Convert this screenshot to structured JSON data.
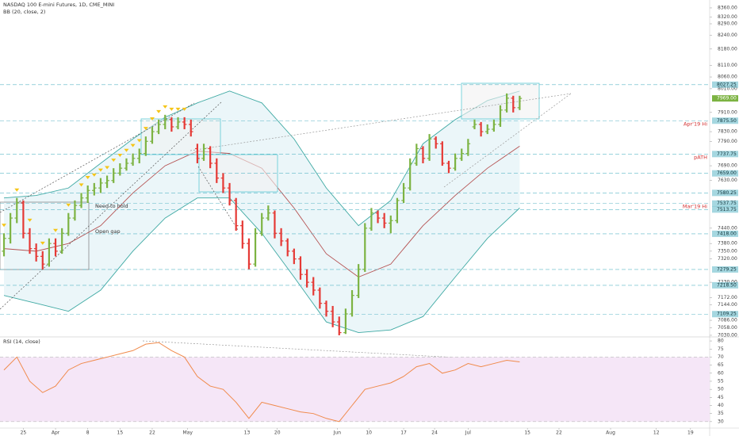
{
  "chart_data": [
    {
      "type": "ohlc",
      "title": "NASDAQ 100 E-mini Futures, 1D, CME_MINI",
      "subtitle": "BB (20, close, 2)",
      "log_scale": true,
      "grid": false,
      "up_color": "#7cb342",
      "down_color": "#e53935",
      "ylim": [
        7024,
        8395
      ],
      "yticks": [
        {
          "value": 8360,
          "label": "8360.00"
        },
        {
          "value": 8320,
          "label": "8320.00"
        },
        {
          "value": 8290,
          "label": "8290.00"
        },
        {
          "value": 8240,
          "label": "8240.00"
        },
        {
          "value": 8180,
          "label": "8180.00"
        },
        {
          "value": 8110,
          "label": "8110.00"
        },
        {
          "value": 8060,
          "label": "8060.00"
        },
        {
          "value": 8010,
          "label": "8010.00"
        },
        {
          "value": 7910,
          "label": "7910.00"
        },
        {
          "value": 7830,
          "label": "7830.00"
        },
        {
          "value": 7790,
          "label": "7790.00"
        },
        {
          "value": 7690,
          "label": "7690.00"
        },
        {
          "value": 7630,
          "label": "7630.00"
        },
        {
          "value": 7440,
          "label": "7440.00"
        },
        {
          "value": 7380,
          "label": "7380.00"
        },
        {
          "value": 7350,
          "label": "7350.00"
        },
        {
          "value": 7320,
          "label": "7320.00"
        },
        {
          "value": 7230,
          "label": "7230.00"
        },
        {
          "value": 7172,
          "label": "7172.00"
        },
        {
          "value": 7144,
          "label": "7144.00"
        },
        {
          "value": 7086,
          "label": "7086.00"
        },
        {
          "value": 7058,
          "label": "7058.00"
        },
        {
          "value": 7030,
          "label": "7030.00"
        }
      ],
      "xticks": [
        {
          "value": 3,
          "label": "25"
        },
        {
          "value": 8,
          "label": "Apr"
        },
        {
          "value": 13,
          "label": "8"
        },
        {
          "value": 18,
          "label": "15"
        },
        {
          "value": 23,
          "label": "22"
        },
        {
          "value": 28.5,
          "label": "May"
        },
        {
          "value": 37.7,
          "label": "13"
        },
        {
          "value": 42.4,
          "label": "20"
        },
        {
          "value": 51.7,
          "label": "Jun"
        },
        {
          "value": 56.6,
          "label": "10"
        },
        {
          "value": 62,
          "label": "17"
        },
        {
          "value": 66.8,
          "label": "24"
        },
        {
          "value": 72,
          "label": "Jul"
        },
        {
          "value": 81.2,
          "label": "15"
        },
        {
          "value": 86.1,
          "label": "22"
        },
        {
          "value": 94.1,
          "label": "Aug"
        },
        {
          "value": 101.2,
          "label": "12"
        },
        {
          "value": 106.5,
          "label": "19"
        }
      ],
      "open": [
        7350,
        7400,
        7480,
        7540,
        7420,
        7360,
        7330,
        7300,
        7380,
        7350,
        7420,
        7480,
        7530,
        7560,
        7590,
        7600,
        7620,
        7630,
        7660,
        7680,
        7700,
        7720,
        7740,
        7790,
        7830,
        7860,
        7880,
        7850,
        7870,
        7860,
        7760,
        7720,
        7760,
        7700,
        7640,
        7600,
        7550,
        7450,
        7380,
        7300,
        7420,
        7480,
        7500,
        7420,
        7390,
        7350,
        7320,
        7260,
        7230,
        7200,
        7150,
        7120,
        7080,
        7040,
        7110,
        7180,
        7280,
        7440,
        7500,
        7480,
        7460,
        7470,
        7550,
        7600,
        7700,
        7760,
        7720,
        7800,
        7780,
        7700,
        7680,
        7720,
        7740,
        7850,
        7860,
        7830,
        7840,
        7860,
        7920,
        7970,
        7930
      ],
      "high": [
        7420,
        7500,
        7560,
        7550,
        7440,
        7380,
        7350,
        7400,
        7400,
        7440,
        7500,
        7550,
        7580,
        7610,
        7620,
        7640,
        7650,
        7680,
        7700,
        7720,
        7740,
        7760,
        7810,
        7850,
        7880,
        7900,
        7890,
        7890,
        7890,
        7880,
        7780,
        7780,
        7770,
        7720,
        7660,
        7620,
        7560,
        7470,
        7400,
        7440,
        7500,
        7530,
        7510,
        7440,
        7400,
        7360,
        7330,
        7280,
        7250,
        7210,
        7160,
        7140,
        7100,
        7130,
        7200,
        7300,
        7460,
        7520,
        7510,
        7500,
        7490,
        7560,
        7620,
        7720,
        7780,
        7770,
        7820,
        7810,
        7790,
        7710,
        7740,
        7760,
        7800,
        7880,
        7870,
        7860,
        7880,
        7940,
        7990,
        7980,
        7980
      ],
      "low": [
        7330,
        7380,
        7460,
        7400,
        7340,
        7310,
        7280,
        7290,
        7330,
        7340,
        7410,
        7470,
        7520,
        7540,
        7570,
        7580,
        7600,
        7620,
        7650,
        7670,
        7690,
        7700,
        7730,
        7780,
        7820,
        7840,
        7830,
        7840,
        7840,
        7810,
        7700,
        7710,
        7680,
        7620,
        7580,
        7530,
        7430,
        7360,
        7280,
        7290,
        7410,
        7470,
        7400,
        7370,
        7330,
        7300,
        7240,
        7210,
        7180,
        7130,
        7100,
        7060,
        7030,
        7035,
        7100,
        7170,
        7270,
        7430,
        7460,
        7440,
        7420,
        7460,
        7540,
        7590,
        7690,
        7700,
        7710,
        7760,
        7690,
        7660,
        7670,
        7710,
        7730,
        7840,
        7810,
        7820,
        7830,
        7850,
        7910,
        7910,
        7920
      ],
      "close": [
        7400,
        7480,
        7540,
        7420,
        7360,
        7330,
        7300,
        7380,
        7350,
        7420,
        7480,
        7530,
        7560,
        7590,
        7600,
        7620,
        7630,
        7660,
        7680,
        7700,
        7720,
        7740,
        7790,
        7830,
        7860,
        7880,
        7850,
        7870,
        7860,
        7830,
        7720,
        7760,
        7700,
        7640,
        7600,
        7550,
        7450,
        7380,
        7300,
        7420,
        7480,
        7500,
        7420,
        7390,
        7350,
        7320,
        7260,
        7230,
        7200,
        7150,
        7120,
        7080,
        7040,
        7110,
        7180,
        7280,
        7440,
        7500,
        7480,
        7460,
        7470,
        7550,
        7600,
        7700,
        7760,
        7720,
        7800,
        7780,
        7700,
        7680,
        7720,
        7740,
        7780,
        7860,
        7830,
        7840,
        7860,
        7920,
        7970,
        7930,
        7969
      ],
      "bands": {
        "x": [
          0,
          5,
          10,
          15,
          20,
          25,
          30,
          35,
          40,
          45,
          50,
          55,
          60,
          65,
          70,
          75,
          80
        ],
        "upper": [
          7560,
          7570,
          7600,
          7700,
          7800,
          7890,
          7950,
          8000,
          7950,
          7800,
          7600,
          7450,
          7550,
          7780,
          7880,
          7960,
          8000
        ],
        "basis": [
          7360,
          7350,
          7380,
          7450,
          7580,
          7690,
          7750,
          7740,
          7680,
          7520,
          7340,
          7250,
          7300,
          7450,
          7570,
          7680,
          7770
        ],
        "lower": [
          7180,
          7150,
          7120,
          7200,
          7350,
          7480,
          7560,
          7560,
          7420,
          7250,
          7080,
          7040,
          7050,
          7100,
          7250,
          7400,
          7520
        ],
        "band_color": "#3ea9a3",
        "basis_color": "#b55252",
        "fill_color": "#e6f4f8"
      },
      "levels": [
        {
          "value": 8027.25
        },
        {
          "value": 7875.5,
          "label": "7875.50",
          "note": "Apr'19 Hi"
        },
        {
          "value": 7737.75,
          "note": "pATH"
        },
        {
          "value": 7659,
          "label": "7659.00"
        },
        {
          "value": 7580.25
        },
        {
          "value": 7537.75,
          "note": "Mar'19 Hi"
        },
        {
          "value": 7513.75
        },
        {
          "value": 7418,
          "label": "7418.00"
        },
        {
          "value": 7279.25
        },
        {
          "value": 7218.5,
          "label": "7218.50"
        },
        {
          "value": 7109.25
        }
      ],
      "level_color": "#5bb6c6",
      "last_price": {
        "value": 7969,
        "label": "7969.00"
      },
      "notes": [
        "Need to hold",
        "Open gap"
      ]
    },
    {
      "type": "line",
      "title": "RSI (14, close)",
      "color": "#f08a4b",
      "band": [
        30,
        70
      ],
      "band_color": "#f5e6f7",
      "ylim": [
        26,
        82
      ],
      "yticks": [
        30,
        35,
        40,
        45,
        50,
        55,
        60,
        65,
        70,
        75,
        80
      ],
      "x": [
        0,
        2,
        4,
        6,
        8,
        10,
        12,
        14,
        16,
        18,
        20,
        22,
        24,
        26,
        28,
        30,
        32,
        34,
        36,
        38,
        40,
        42,
        44,
        46,
        48,
        50,
        52,
        54,
        56,
        58,
        60,
        62,
        64,
        66,
        68,
        70,
        72,
        74,
        76,
        78,
        80
      ],
      "values": [
        62,
        70,
        55,
        48,
        52,
        62,
        66,
        68,
        70,
        72,
        74,
        78,
        79,
        74,
        70,
        58,
        52,
        50,
        42,
        32,
        42,
        40,
        38,
        36,
        35,
        32,
        30,
        40,
        50,
        52,
        54,
        58,
        64,
        66,
        60,
        62,
        66,
        64,
        66,
        68,
        67
      ]
    }
  ]
}
